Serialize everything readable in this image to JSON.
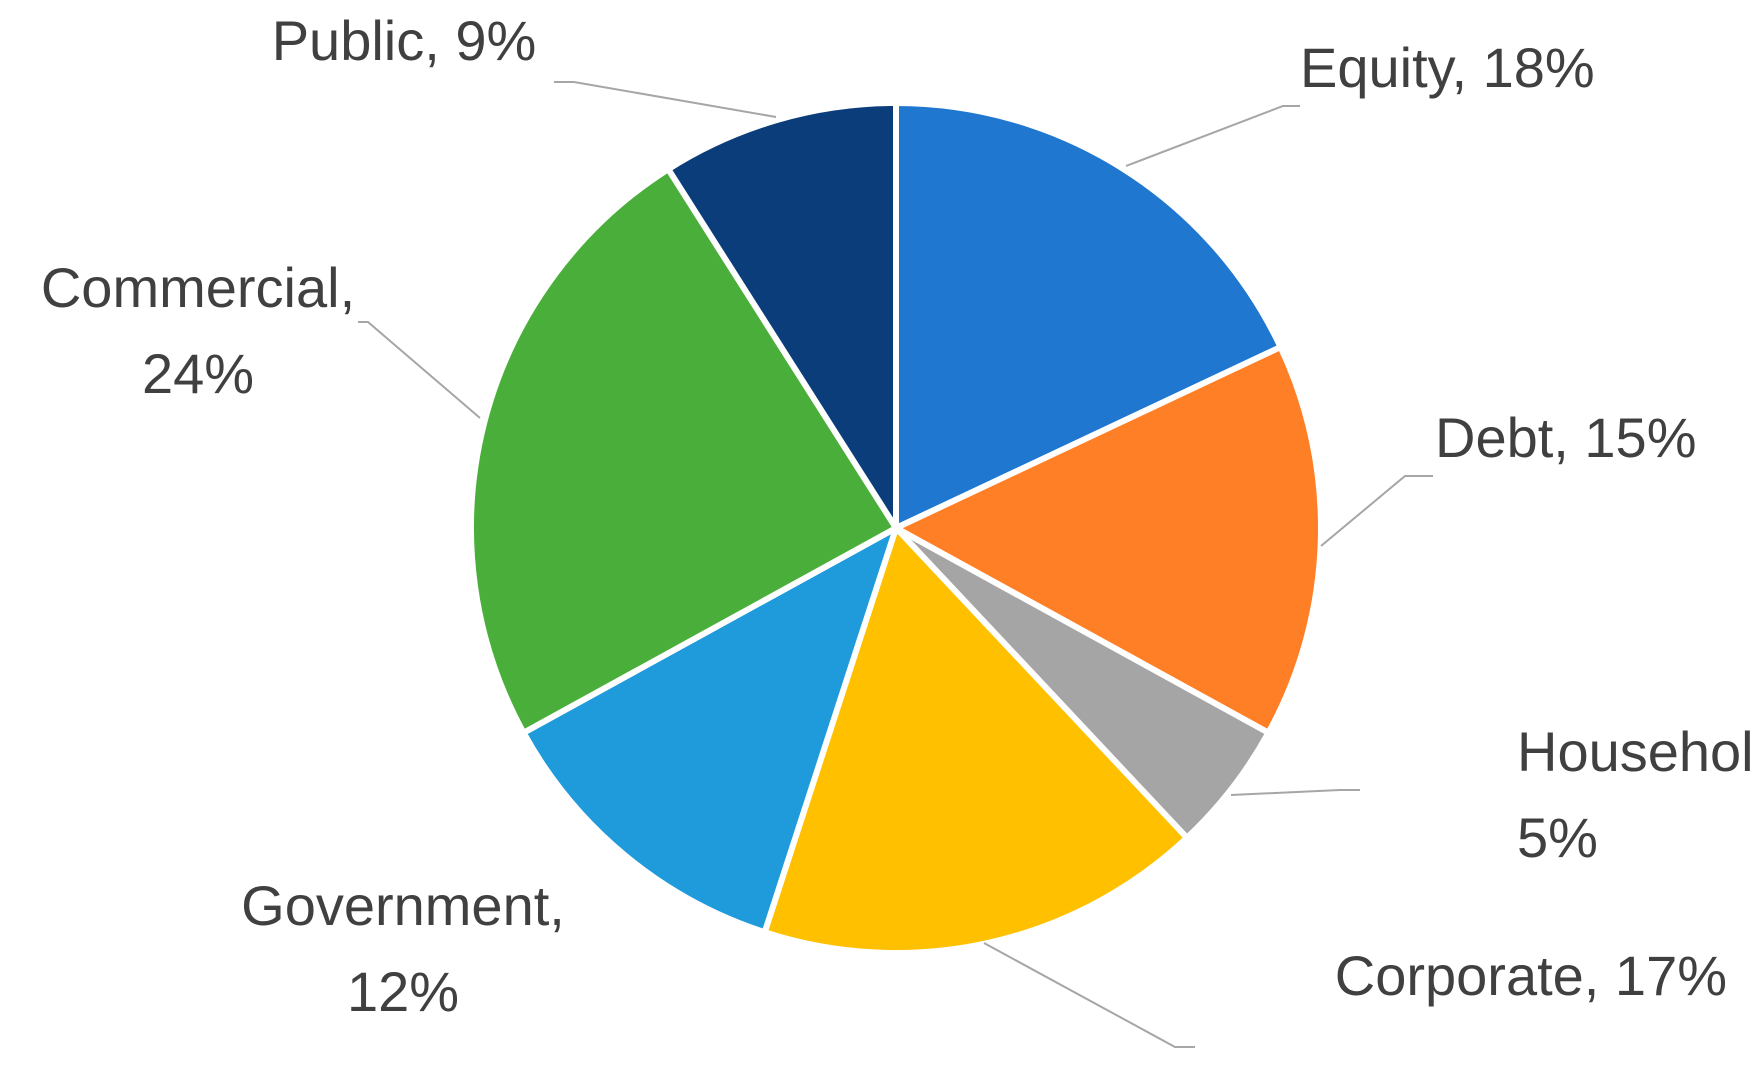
{
  "chart_data": {
    "type": "pie",
    "title": "",
    "slices": [
      {
        "name": "Equity",
        "value": 18,
        "label_lines": [
          "Equity, 18%"
        ],
        "color": "#1f77d0"
      },
      {
        "name": "Debt",
        "value": 15,
        "label_lines": [
          "Debt, 15%"
        ],
        "color": "#ff7f27"
      },
      {
        "name": "Household",
        "value": 5,
        "label_lines": [
          "Household,",
          "5%"
        ],
        "color": "#a5a5a5"
      },
      {
        "name": "Corporate",
        "value": 17,
        "label_lines": [
          "Corporate, 17%"
        ],
        "color": "#ffc000"
      },
      {
        "name": "Government",
        "value": 12,
        "label_lines": [
          "Government,",
          "12%"
        ],
        "color": "#1f9bdb"
      },
      {
        "name": "Commercial",
        "value": 24,
        "label_lines": [
          "Commercial,",
          "24%"
        ],
        "color": "#4aaf3a"
      },
      {
        "name": "Public",
        "value": 9,
        "label_lines": [
          "Public, 9%"
        ],
        "color": "#0a3d7a"
      }
    ],
    "legend": false,
    "data_labels": "outside, category name and percentage, with leader lines"
  }
}
